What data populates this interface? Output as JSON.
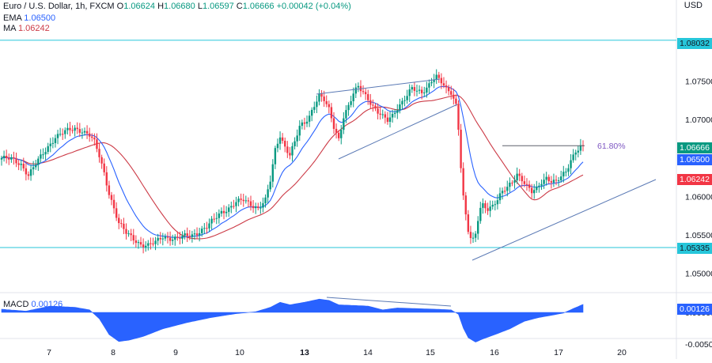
{
  "header": {
    "symbol": "Euro / U.S. Dollar, 1h, FXCM",
    "o_label": "O",
    "o_value": "1.06624",
    "h_label": "H",
    "h_value": "1.06680",
    "l_label": "L",
    "l_value": "1.06597",
    "c_label": "C",
    "c_value": "1.06666",
    "change": "+0.00042 (+0.04%)"
  },
  "ema": {
    "label": "EMA",
    "value": "1.06500",
    "color": "#2962ff"
  },
  "ma": {
    "label": "MA",
    "value": "1.06242",
    "color": "#cc3a46"
  },
  "currency": "USD",
  "fib_label": "61.80%",
  "price_tags": [
    {
      "text": "1.08032",
      "bg": "#26c6da",
      "fg": "#131722"
    },
    {
      "text": "1.06666",
      "bg": "#089981",
      "fg": "#ffffff"
    },
    {
      "text": "1.06500",
      "bg": "#2962ff",
      "fg": "#ffffff"
    },
    {
      "text": "1.06242",
      "bg": "#f23645",
      "fg": "#ffffff"
    },
    {
      "text": "1.05335",
      "bg": "#26c6da",
      "fg": "#131722"
    }
  ],
  "macd": {
    "label": "MACD",
    "value": "0.00126",
    "tag": "0.00126",
    "tag_bg": "#2962ff"
  },
  "colors": {
    "up": "#089981",
    "down": "#f23645",
    "hline": "#26c6da",
    "trend": "#5b7ab5",
    "macd_fill": "#2962ff"
  },
  "chart_data": {
    "type": "candlestick",
    "main_yaxis": {
      "ylim": [
        1.0465,
        1.0845
      ],
      "ticks": [
        "1.07500",
        "1.07000",
        "1.06500",
        "1.06000",
        "1.05500",
        "1.05000"
      ]
    },
    "macd_yaxis": {
      "ticks": [
        "0.00000",
        "-0.00500"
      ]
    },
    "xaxis": {
      "ticks": [
        "7",
        "8",
        "9",
        "10",
        "13",
        "14",
        "15",
        "16",
        "17",
        "20"
      ]
    },
    "horizontal_levels": [
      1.08032,
      1.05335
    ],
    "fib_level": {
      "label": "61.80%",
      "price": 1.0666
    },
    "series": [
      {
        "name": "EMA",
        "value": 1.065
      },
      {
        "name": "MA",
        "value": 1.06242
      }
    ],
    "price_path": [
      [
        0,
        1.065
      ],
      [
        4,
        1.0648
      ],
      [
        8,
        1.0642
      ],
      [
        11,
        1.0628
      ],
      [
        14,
        1.0642
      ],
      [
        18,
        1.066
      ],
      [
        22,
        1.0678
      ],
      [
        26,
        1.0684
      ],
      [
        30,
        1.0688
      ],
      [
        33,
        1.0686
      ],
      [
        36,
        1.068
      ],
      [
        38,
        1.067
      ],
      [
        40,
        1.0652
      ],
      [
        42,
        1.063
      ],
      [
        44,
        1.0605
      ],
      [
        46,
        1.0585
      ],
      [
        48,
        1.0565
      ],
      [
        51,
        1.0552
      ],
      [
        54,
        1.0545
      ],
      [
        57,
        1.0538
      ],
      [
        60,
        1.0536
      ],
      [
        63,
        1.054
      ],
      [
        66,
        1.0548
      ],
      [
        69,
        1.0546
      ],
      [
        72,
        1.0545
      ],
      [
        75,
        1.0548
      ],
      [
        78,
        1.055
      ],
      [
        81,
        1.0555
      ],
      [
        84,
        1.056
      ],
      [
        87,
        1.057
      ],
      [
        90,
        1.058
      ],
      [
        93,
        1.0585
      ],
      [
        96,
        1.0592
      ],
      [
        99,
        1.0595
      ],
      [
        102,
        1.059
      ],
      [
        105,
        1.0585
      ],
      [
        108,
        1.0595
      ],
      [
        110,
        1.062
      ],
      [
        112,
        1.066
      ],
      [
        114,
        1.068
      ],
      [
        116,
        1.0665
      ],
      [
        118,
        1.0655
      ],
      [
        120,
        1.067
      ],
      [
        122,
        1.069
      ],
      [
        124,
        1.0695
      ],
      [
        126,
        1.0705
      ],
      [
        128,
        1.072
      ],
      [
        130,
        1.0732
      ],
      [
        132,
        1.0725
      ],
      [
        134,
        1.0712
      ],
      [
        136,
        1.069
      ],
      [
        138,
        1.0675
      ],
      [
        140,
        1.0705
      ],
      [
        142,
        1.0718
      ],
      [
        144,
        1.0733
      ],
      [
        146,
        1.0742
      ],
      [
        148,
        1.0735
      ],
      [
        150,
        1.0728
      ],
      [
        152,
        1.0718
      ],
      [
        154,
        1.071
      ],
      [
        156,
        1.0703
      ],
      [
        158,
        1.0698
      ],
      [
        160,
        1.0705
      ],
      [
        162,
        1.0716
      ],
      [
        164,
        1.0724
      ],
      [
        166,
        1.0732
      ],
      [
        168,
        1.074
      ],
      [
        170,
        1.0736
      ],
      [
        172,
        1.0735
      ],
      [
        174,
        1.0742
      ],
      [
        176,
        1.0752
      ],
      [
        178,
        1.0756
      ],
      [
        180,
        1.0748
      ],
      [
        182,
        1.0738
      ],
      [
        184,
        1.0735
      ],
      [
        186,
        1.072
      ],
      [
        187,
        1.069
      ],
      [
        188,
        1.064
      ],
      [
        189,
        1.06
      ],
      [
        190,
        1.0575
      ],
      [
        191,
        1.0555
      ],
      [
        192,
        1.0545
      ],
      [
        193,
        1.0542
      ],
      [
        194,
        1.055
      ],
      [
        195,
        1.057
      ],
      [
        196,
        1.0585
      ],
      [
        197,
        1.059
      ],
      [
        199,
        1.0585
      ],
      [
        201,
        1.0588
      ],
      [
        203,
        1.0595
      ],
      [
        205,
        1.0605
      ],
      [
        207,
        1.0612
      ],
      [
        209,
        1.062
      ],
      [
        211,
        1.063
      ],
      [
        213,
        1.0622
      ],
      [
        215,
        1.0612
      ],
      [
        217,
        1.0605
      ],
      [
        219,
        1.061
      ],
      [
        221,
        1.062
      ],
      [
        223,
        1.0625
      ],
      [
        225,
        1.062
      ],
      [
        227,
        1.0618
      ],
      [
        229,
        1.0625
      ],
      [
        231,
        1.0632
      ],
      [
        233,
        1.0648
      ],
      [
        235,
        1.066
      ],
      [
        237,
        1.0665
      ],
      [
        238,
        1.0667
      ]
    ],
    "macd_path": [
      [
        0,
        0.0005
      ],
      [
        10,
        0.0002
      ],
      [
        20,
        0.001
      ],
      [
        30,
        0.0008
      ],
      [
        36,
        0.0004
      ],
      [
        40,
        -0.001
      ],
      [
        44,
        -0.0035
      ],
      [
        48,
        -0.0046
      ],
      [
        52,
        -0.0044
      ],
      [
        58,
        -0.0038
      ],
      [
        66,
        -0.0026
      ],
      [
        76,
        -0.0016
      ],
      [
        86,
        -0.0008
      ],
      [
        96,
        -0.0002
      ],
      [
        104,
        0.0001
      ],
      [
        110,
        0.0008
      ],
      [
        114,
        0.0016
      ],
      [
        118,
        0.0012
      ],
      [
        124,
        0.0016
      ],
      [
        130,
        0.0021
      ],
      [
        134,
        0.0019
      ],
      [
        138,
        0.0012
      ],
      [
        144,
        0.0011
      ],
      [
        150,
        0.001
      ],
      [
        156,
        0.0004
      ],
      [
        162,
        0.0007
      ],
      [
        170,
        0.0006
      ],
      [
        178,
        0.0005
      ],
      [
        184,
        0.0004
      ],
      [
        187,
        -0.0003
      ],
      [
        189,
        -0.0025
      ],
      [
        191,
        -0.004
      ],
      [
        194,
        -0.0047
      ],
      [
        197,
        -0.0042
      ],
      [
        202,
        -0.0035
      ],
      [
        208,
        -0.0026
      ],
      [
        214,
        -0.0014
      ],
      [
        220,
        -0.0008
      ],
      [
        226,
        -0.0004
      ],
      [
        230,
        -0.0001
      ],
      [
        234,
        0.0006
      ],
      [
        238,
        0.00126
      ]
    ]
  }
}
